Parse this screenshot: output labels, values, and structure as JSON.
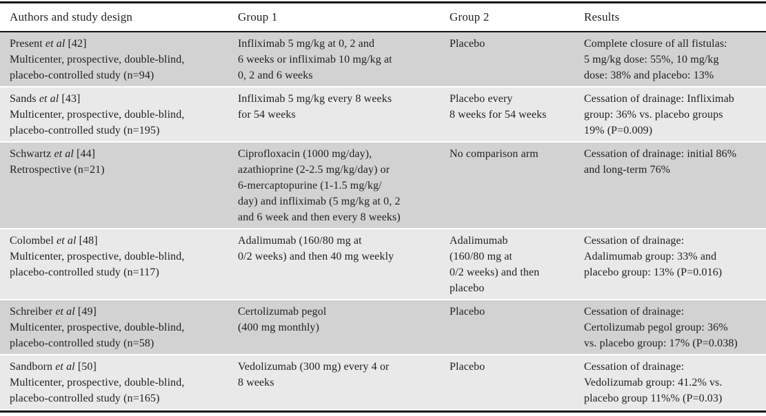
{
  "theme": {
    "row_shade_dark": "#d2d2d2",
    "row_shade_light": "#e9e9e9",
    "rule_color": "#111111",
    "text_color": "#1e1e1e",
    "background": "#ffffff"
  },
  "table": {
    "columns": [
      "Authors and study design",
      "Group 1",
      "Group 2",
      "Results"
    ],
    "rows": [
      {
        "author": "Present ",
        "etal": "et al",
        "ref": " [42]",
        "design": [
          "Multicenter, prospective, double-blind,",
          "placebo-controlled study (n=94)"
        ],
        "group1": [
          "Infliximab 5 mg/kg at 0, 2 and",
          "6 weeks or infliximab 10 mg/kg at",
          "0, 2 and 6 weeks"
        ],
        "group2": [
          "Placebo"
        ],
        "results": [
          "Complete closure of all fistulas:",
          "5 mg/kg dose: 55%, 10 mg/kg",
          "dose: 38% and placebo: 13%"
        ]
      },
      {
        "author": "Sands ",
        "etal": "et al",
        "ref": " [43]",
        "design": [
          "Multicenter, prospective, double-blind,",
          "placebo-controlled study (n=195)"
        ],
        "group1": [
          "Infliximab 5 mg/kg every 8 weeks",
          "for 54 weeks"
        ],
        "group2": [
          "Placebo every",
          "8 weeks for 54 weeks"
        ],
        "results": [
          "Cessation of drainage: Infliximab",
          "group: 36% vs. placebo groups",
          "19% (P=0.009)"
        ]
      },
      {
        "author": "Schwartz ",
        "etal": "et al",
        "ref": " [44]",
        "design": [
          "Retrospective (n=21)"
        ],
        "group1": [
          "Ciprofloxacin (1000 mg/day),",
          "azathioprine (2-2.5 mg/kg/day) or",
          "6-mercaptopurine (1-1.5 mg/kg/",
          "day) and infliximab (5 mg/kg at 0, 2",
          "and 6 week and then every 8 weeks)"
        ],
        "group2": [
          "No comparison arm"
        ],
        "results": [
          "Cessation of drainage: initial 86%",
          "and long-term 76%"
        ]
      },
      {
        "author": "Colombel ",
        "etal": "et al",
        "ref": " [48]",
        "design": [
          "Multicenter, prospective, double-blind,",
          "placebo-controlled study (n=117)"
        ],
        "group1": [
          "Adalimumab (160/80 mg at",
          "0/2 weeks) and then 40 mg weekly"
        ],
        "group2": [
          "Adalimumab",
          "(160/80 mg at",
          "0/2 weeks) and then",
          "placebo"
        ],
        "results": [
          "Cessation of drainage:",
          "Adalimumab group: 33% and",
          "placebo group: 13% (P=0.016)"
        ]
      },
      {
        "author": "Schreiber ",
        "etal": "et al",
        "ref": " [49]",
        "design": [
          "Multicenter, prospective, double-blind,",
          "placebo-controlled study (n=58)"
        ],
        "group1": [
          "Certolizumab pegol",
          "(400 mg monthly)"
        ],
        "group2": [
          "Placebo"
        ],
        "results": [
          "Cessation of drainage:",
          "Certolizumab pegol group: 36%",
          "vs. placebo group: 17% (P=0.038)"
        ]
      },
      {
        "author": "Sandborn ",
        "etal": "et al",
        "ref": " [50]",
        "design": [
          "Multicenter, prospective, double-blind,",
          "placebo-controlled study (n=165)"
        ],
        "group1": [
          "Vedolizumab (300 mg) every 4 or",
          "8 weeks"
        ],
        "group2": [
          "Placebo"
        ],
        "results": [
          "Cessation of drainage:",
          "Vedolizumab group: 41.2% vs.",
          "placebo group 11%% (P=0.03)"
        ]
      }
    ]
  }
}
